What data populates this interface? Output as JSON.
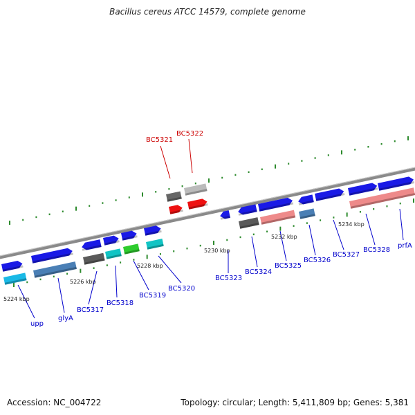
{
  "title": "Bacillus cereus ATCC 14579, complete genome",
  "accession": "Accession: NC_004722",
  "topology": "Topology: circular; Length: 5,411,809 bp; Genes: 5,381",
  "colors": {
    "gene_blue": "#1a1ae6",
    "gene_red": "#ee1111",
    "label_blue": "#0000cc",
    "label_red": "#cc0000",
    "backbone": "#888888",
    "tick_green": "#2e8b2e"
  },
  "scale_labels": [
    "5224 kbp",
    "5226 kbp",
    "5228 kbp",
    "5230 kbp",
    "5232 kbp",
    "5234 kbp"
  ],
  "genes": [
    {
      "label": "upp",
      "color": "blue"
    },
    {
      "label": "glyA",
      "color": "blue"
    },
    {
      "label": "BC5317",
      "color": "blue"
    },
    {
      "label": "BC5318",
      "color": "blue"
    },
    {
      "label": "BC5319",
      "color": "blue"
    },
    {
      "label": "BC5320",
      "color": "blue"
    },
    {
      "label": "BC5321",
      "color": "red"
    },
    {
      "label": "BC5322",
      "color": "red"
    },
    {
      "label": "BC5323",
      "color": "blue"
    },
    {
      "label": "BC5324",
      "color": "blue"
    },
    {
      "label": "BC5325",
      "color": "blue"
    },
    {
      "label": "BC5326",
      "color": "blue"
    },
    {
      "label": "BC5327",
      "color": "blue"
    },
    {
      "label": "BC5328",
      "color": "blue"
    },
    {
      "label": "prfA",
      "color": "blue"
    }
  ]
}
